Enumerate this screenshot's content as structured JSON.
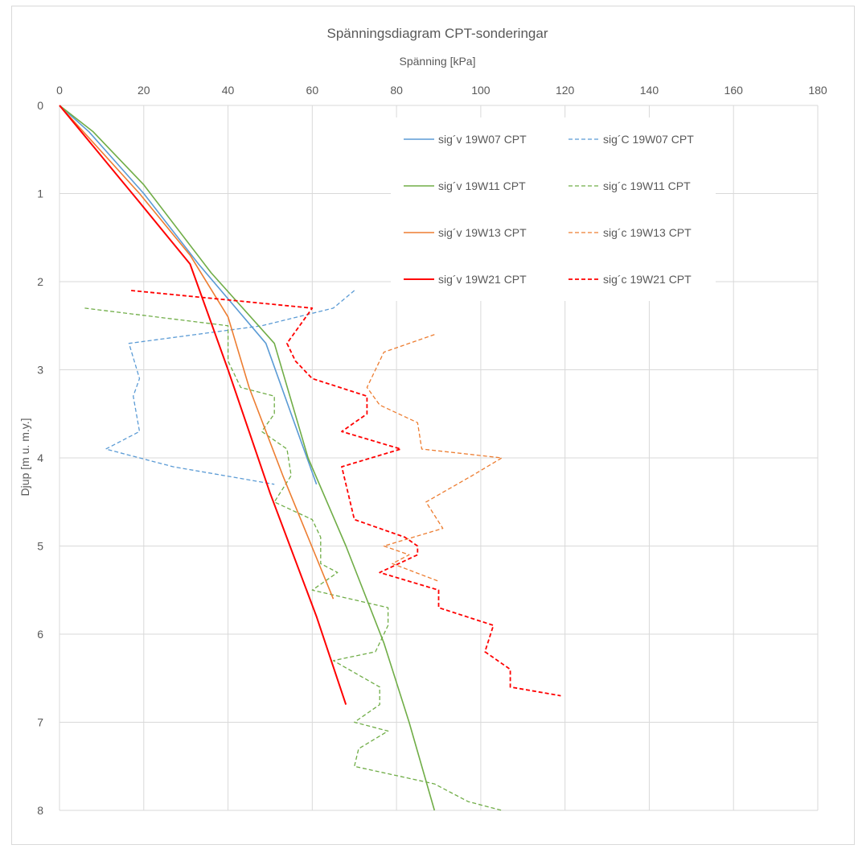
{
  "chart_data": {
    "type": "line",
    "title": "Spänningsdiagram CPT-sonderingar",
    "xlabel": "Spänning [kPa]",
    "ylabel": "Djup [m u. m.y.]",
    "x_axis_position": "top",
    "y_axis_inverted": true,
    "xlim": [
      0,
      180
    ],
    "ylim": [
      0,
      8
    ],
    "x_ticks": [
      "0",
      "20",
      "40",
      "60",
      "80",
      "100",
      "120",
      "140",
      "160",
      "180"
    ],
    "y_ticks": [
      "0",
      "1",
      "2",
      "3",
      "4",
      "5",
      "6",
      "7",
      "8"
    ],
    "grid": true,
    "legend_position": "top-right",
    "series": [
      {
        "name": "sig´v 19W07 CPT",
        "color": "#5b9bd5",
        "dash": "solid",
        "width": 1.6,
        "points": [
          [
            0,
            0
          ],
          [
            7,
            0.3
          ],
          [
            20,
            1.0
          ],
          [
            33,
            1.8
          ],
          [
            49,
            2.7
          ],
          [
            55,
            3.5
          ],
          [
            61,
            4.3
          ]
        ]
      },
      {
        "name": "sig´C 19W07 CPT",
        "color": "#5b9bd5",
        "dash": "dashed",
        "width": 1.3,
        "points": [
          [
            70,
            2.1
          ],
          [
            65,
            2.3
          ],
          [
            48,
            2.5
          ],
          [
            16.5,
            2.7
          ],
          [
            19,
            3.1
          ],
          [
            17.5,
            3.3
          ],
          [
            19,
            3.7
          ],
          [
            11,
            3.9
          ],
          [
            27,
            4.1
          ],
          [
            51,
            4.3
          ]
        ]
      },
      {
        "name": "sig´v 19W11 CPT",
        "color": "#70ad47",
        "dash": "solid",
        "width": 1.6,
        "points": [
          [
            0,
            0
          ],
          [
            8,
            0.3
          ],
          [
            20,
            0.9
          ],
          [
            36,
            1.9
          ],
          [
            51,
            2.7
          ],
          [
            59,
            4.0
          ],
          [
            68,
            5.0
          ],
          [
            77,
            6.1
          ],
          [
            83,
            7.0
          ],
          [
            89,
            8.0
          ]
        ]
      },
      {
        "name": "sig´c 19W11 CPT",
        "color": "#70ad47",
        "dash": "dashed",
        "width": 1.3,
        "points": [
          [
            6,
            2.3
          ],
          [
            40,
            2.5
          ],
          [
            40,
            2.9
          ],
          [
            43,
            3.2
          ],
          [
            51,
            3.3
          ],
          [
            51,
            3.5
          ],
          [
            48,
            3.7
          ],
          [
            54,
            3.9
          ],
          [
            55,
            4.2
          ],
          [
            51,
            4.5
          ],
          [
            60,
            4.7
          ],
          [
            62,
            4.9
          ],
          [
            62,
            5.2
          ],
          [
            66,
            5.3
          ],
          [
            60,
            5.5
          ],
          [
            78,
            5.7
          ],
          [
            78,
            5.9
          ],
          [
            75,
            6.2
          ],
          [
            65,
            6.3
          ],
          [
            76,
            6.6
          ],
          [
            76,
            6.8
          ],
          [
            70,
            7.0
          ],
          [
            78,
            7.1
          ],
          [
            71,
            7.3
          ],
          [
            70,
            7.5
          ],
          [
            89,
            7.7
          ],
          [
            97,
            7.9
          ],
          [
            105,
            8.0
          ]
        ]
      },
      {
        "name": "sig´v 19W13 CPT",
        "color": "#ed7d31",
        "dash": "solid",
        "width": 1.6,
        "points": [
          [
            0,
            0
          ],
          [
            19,
            1.0
          ],
          [
            31,
            1.7
          ],
          [
            40,
            2.4
          ],
          [
            45,
            3.2
          ],
          [
            53,
            4.2
          ],
          [
            65,
            5.6
          ]
        ]
      },
      {
        "name": "sig´c 19W13 CPT",
        "color": "#ed7d31",
        "dash": "dashed",
        "width": 1.3,
        "points": [
          [
            89,
            2.6
          ],
          [
            77,
            2.8
          ],
          [
            73,
            3.2
          ],
          [
            76,
            3.4
          ],
          [
            85,
            3.6
          ],
          [
            86,
            3.9
          ],
          [
            105,
            4.0
          ],
          [
            98,
            4.2
          ],
          [
            87,
            4.5
          ],
          [
            91,
            4.8
          ],
          [
            77,
            5.0
          ],
          [
            83,
            5.1
          ],
          [
            79,
            5.2
          ],
          [
            90,
            5.4
          ]
        ]
      },
      {
        "name": "sig´v 19W21 CPT",
        "color": "#ff0000",
        "dash": "solid",
        "width": 2.0,
        "points": [
          [
            0,
            0
          ],
          [
            19,
            1.1
          ],
          [
            31,
            1.8
          ],
          [
            40,
            3.0
          ],
          [
            50,
            4.4
          ],
          [
            61,
            5.8
          ],
          [
            68,
            6.8
          ]
        ]
      },
      {
        "name": "sig´c 19W21 CPT",
        "color": "#ff0000",
        "dash": "dashed",
        "width": 1.8,
        "points": [
          [
            17,
            2.1
          ],
          [
            60,
            2.3
          ],
          [
            57,
            2.5
          ],
          [
            54,
            2.7
          ],
          [
            56,
            2.9
          ],
          [
            60,
            3.1
          ],
          [
            73,
            3.3
          ],
          [
            73,
            3.5
          ],
          [
            67,
            3.7
          ],
          [
            81,
            3.9
          ],
          [
            67,
            4.1
          ],
          [
            69,
            4.5
          ],
          [
            70,
            4.7
          ],
          [
            82,
            4.9
          ],
          [
            85,
            5.0
          ],
          [
            85,
            5.1
          ],
          [
            76,
            5.3
          ],
          [
            90,
            5.5
          ],
          [
            90,
            5.7
          ],
          [
            103,
            5.9
          ],
          [
            101,
            6.2
          ],
          [
            107,
            6.4
          ],
          [
            107,
            6.6
          ],
          [
            119,
            6.7
          ]
        ]
      }
    ]
  }
}
